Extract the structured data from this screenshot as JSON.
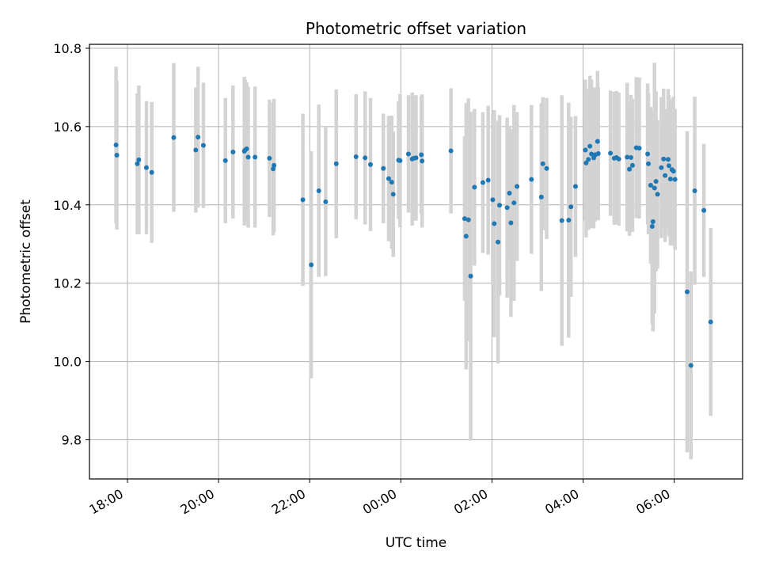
{
  "chart_data": {
    "type": "scatter",
    "title": "Photometric offset variation",
    "xlabel": "UTC time",
    "ylabel": "Photometric offset",
    "xlim": [
      "17:10",
      "07:30"
    ],
    "ylim": [
      9.7,
      10.81
    ],
    "grid": true,
    "x_ticks": [
      "18:00",
      "20:00",
      "22:00",
      "00:00",
      "02:00",
      "04:00",
      "06:00"
    ],
    "y_ticks": [
      "9.8",
      "10.0",
      "10.2",
      "10.4",
      "10.6",
      "10.8"
    ],
    "colors": {
      "point": "#1f77b4",
      "errorbar": "#d3d3d3",
      "grid": "#b0b0b0"
    },
    "series": [
      {
        "points": [
          {
            "x": "17:45",
            "y": 10.553,
            "yerr": 0.2
          },
          {
            "x": "17:46",
            "y": 10.527,
            "yerr": 0.19
          },
          {
            "x": "18:13",
            "y": 10.505,
            "yerr": 0.18
          },
          {
            "x": "18:15",
            "y": 10.515,
            "yerr": 0.19
          },
          {
            "x": "18:25",
            "y": 10.495,
            "yerr": 0.17
          },
          {
            "x": "18:32",
            "y": 10.483,
            "yerr": 0.18
          },
          {
            "x": "19:01",
            "y": 10.572,
            "yerr": 0.19
          },
          {
            "x": "19:30",
            "y": 10.54,
            "yerr": 0.16
          },
          {
            "x": "19:33",
            "y": 10.573,
            "yerr": 0.18
          },
          {
            "x": "19:40",
            "y": 10.552,
            "yerr": 0.16
          },
          {
            "x": "20:09",
            "y": 10.513,
            "yerr": 0.16
          },
          {
            "x": "20:19",
            "y": 10.535,
            "yerr": 0.17
          },
          {
            "x": "20:34",
            "y": 10.537,
            "yerr": 0.19
          },
          {
            "x": "20:35",
            "y": 10.54,
            "yerr": 0.18
          },
          {
            "x": "20:37",
            "y": 10.543,
            "yerr": 0.17
          },
          {
            "x": "20:39",
            "y": 10.522,
            "yerr": 0.18
          },
          {
            "x": "20:48",
            "y": 10.522,
            "yerr": 0.18
          },
          {
            "x": "21:07",
            "y": 10.519,
            "yerr": 0.15
          },
          {
            "x": "21:12",
            "y": 10.492,
            "yerr": 0.17
          },
          {
            "x": "21:13",
            "y": 10.501,
            "yerr": 0.17
          },
          {
            "x": "21:51",
            "y": 10.413,
            "yerr": 0.22
          },
          {
            "x": "22:02",
            "y": 10.247,
            "yerr": 0.29
          },
          {
            "x": "22:12",
            "y": 10.436,
            "yerr": 0.22
          },
          {
            "x": "22:21",
            "y": 10.408,
            "yerr": 0.19
          },
          {
            "x": "22:35",
            "y": 10.505,
            "yerr": 0.19
          },
          {
            "x": "23:01",
            "y": 10.523,
            "yerr": 0.16
          },
          {
            "x": "23:13",
            "y": 10.52,
            "yerr": 0.17
          },
          {
            "x": "23:20",
            "y": 10.503,
            "yerr": 0.17
          },
          {
            "x": "23:37",
            "y": 10.493,
            "yerr": 0.14
          },
          {
            "x": "23:44",
            "y": 10.467,
            "yerr": 0.16
          },
          {
            "x": "23:48",
            "y": 10.458,
            "yerr": 0.17
          },
          {
            "x": "23:50",
            "y": 10.427,
            "yerr": 0.16
          },
          {
            "x": "23:57",
            "y": 10.514,
            "yerr": 0.15
          },
          {
            "x": "23:59",
            "y": 10.513,
            "yerr": 0.17
          },
          {
            "x": "00:10",
            "y": 10.53,
            "yerr": 0.15
          },
          {
            "x": "00:15",
            "y": 10.517,
            "yerr": 0.17
          },
          {
            "x": "00:17",
            "y": 10.519,
            "yerr": 0.16
          },
          {
            "x": "00:20",
            "y": 10.52,
            "yerr": 0.16
          },
          {
            "x": "00:27",
            "y": 10.528,
            "yerr": 0.15
          },
          {
            "x": "00:28",
            "y": 10.512,
            "yerr": 0.17
          },
          {
            "x": "01:06",
            "y": 10.538,
            "yerr": 0.16
          },
          {
            "x": "01:24",
            "y": 10.365,
            "yerr": 0.21
          },
          {
            "x": "01:26",
            "y": 10.32,
            "yerr": 0.34
          },
          {
            "x": "01:29",
            "y": 10.362,
            "yerr": 0.31
          },
          {
            "x": "01:32",
            "y": 10.218,
            "yerr": 0.42
          },
          {
            "x": "01:37",
            "y": 10.445,
            "yerr": 0.2
          },
          {
            "x": "01:48",
            "y": 10.457,
            "yerr": 0.18
          },
          {
            "x": "01:55",
            "y": 10.463,
            "yerr": 0.19
          },
          {
            "x": "02:01",
            "y": 10.413,
            "yerr": 0.22
          },
          {
            "x": "02:03",
            "y": 10.352,
            "yerr": 0.29
          },
          {
            "x": "02:08",
            "y": 10.305,
            "yerr": 0.31
          },
          {
            "x": "02:10",
            "y": 10.399,
            "yerr": 0.23
          },
          {
            "x": "02:20",
            "y": 10.393,
            "yerr": 0.23
          },
          {
            "x": "02:23",
            "y": 10.43,
            "yerr": 0.17
          },
          {
            "x": "02:25",
            "y": 10.354,
            "yerr": 0.24
          },
          {
            "x": "02:29",
            "y": 10.405,
            "yerr": 0.25
          },
          {
            "x": "02:33",
            "y": 10.447,
            "yerr": 0.19
          },
          {
            "x": "02:52",
            "y": 10.465,
            "yerr": 0.19
          },
          {
            "x": "03:05",
            "y": 10.42,
            "yerr": 0.24
          },
          {
            "x": "03:07",
            "y": 10.505,
            "yerr": 0.17
          },
          {
            "x": "03:12",
            "y": 10.493,
            "yerr": 0.18
          },
          {
            "x": "03:32",
            "y": 10.36,
            "yerr": 0.32
          },
          {
            "x": "03:41",
            "y": 10.361,
            "yerr": 0.3
          },
          {
            "x": "03:44",
            "y": 10.395,
            "yerr": 0.23
          },
          {
            "x": "03:50",
            "y": 10.447,
            "yerr": 0.18
          },
          {
            "x": "04:03",
            "y": 10.54,
            "yerr": 0.18
          },
          {
            "x": "04:04",
            "y": 10.507,
            "yerr": 0.19
          },
          {
            "x": "04:07",
            "y": 10.516,
            "yerr": 0.18
          },
          {
            "x": "04:09",
            "y": 10.55,
            "yerr": 0.18
          },
          {
            "x": "04:11",
            "y": 10.53,
            "yerr": 0.19
          },
          {
            "x": "04:14",
            "y": 10.52,
            "yerr": 0.18
          },
          {
            "x": "04:16",
            "y": 10.528,
            "yerr": 0.17
          },
          {
            "x": "04:19",
            "y": 10.562,
            "yerr": 0.18
          },
          {
            "x": "04:20",
            "y": 10.531,
            "yerr": 0.17
          },
          {
            "x": "04:36",
            "y": 10.532,
            "yerr": 0.16
          },
          {
            "x": "04:41",
            "y": 10.519,
            "yerr": 0.17
          },
          {
            "x": "04:44",
            "y": 10.521,
            "yerr": 0.17
          },
          {
            "x": "04:47",
            "y": 10.517,
            "yerr": 0.17
          },
          {
            "x": "04:58",
            "y": 10.522,
            "yerr": 0.19
          },
          {
            "x": "05:01",
            "y": 10.491,
            "yerr": 0.17
          },
          {
            "x": "05:03",
            "y": 10.521,
            "yerr": 0.16
          },
          {
            "x": "05:05",
            "y": 10.501,
            "yerr": 0.17
          },
          {
            "x": "05:10",
            "y": 10.546,
            "yerr": 0.18
          },
          {
            "x": "05:14",
            "y": 10.545,
            "yerr": 0.18
          },
          {
            "x": "05:25",
            "y": 10.53,
            "yerr": 0.18
          },
          {
            "x": "05:26",
            "y": 10.505,
            "yerr": 0.18
          },
          {
            "x": "05:29",
            "y": 10.45,
            "yerr": 0.2
          },
          {
            "x": "05:31",
            "y": 10.345,
            "yerr": 0.25
          },
          {
            "x": "05:32",
            "y": 10.357,
            "yerr": 0.28
          },
          {
            "x": "05:34",
            "y": 10.443,
            "yerr": 0.32
          },
          {
            "x": "05:36",
            "y": 10.46,
            "yerr": 0.23
          },
          {
            "x": "05:38",
            "y": 10.427,
            "yerr": 0.19
          },
          {
            "x": "05:43",
            "y": 10.495,
            "yerr": 0.18
          },
          {
            "x": "05:46",
            "y": 10.517,
            "yerr": 0.18
          },
          {
            "x": "05:48",
            "y": 10.475,
            "yerr": 0.17
          },
          {
            "x": "05:52",
            "y": 10.516,
            "yerr": 0.18
          },
          {
            "x": "05:53",
            "y": 10.5,
            "yerr": 0.18
          },
          {
            "x": "05:55",
            "y": 10.466,
            "yerr": 0.17
          },
          {
            "x": "05:57",
            "y": 10.49,
            "yerr": 0.18
          },
          {
            "x": "05:59",
            "y": 10.486,
            "yerr": 0.19
          },
          {
            "x": "06:01",
            "y": 10.465,
            "yerr": 0.18
          },
          {
            "x": "06:17",
            "y": 10.178,
            "yerr": 0.41
          },
          {
            "x": "06:22",
            "y": 9.99,
            "yerr": 0.24
          },
          {
            "x": "06:27",
            "y": 10.436,
            "yerr": 0.24
          },
          {
            "x": "06:39",
            "y": 10.386,
            "yerr": 0.17
          },
          {
            "x": "06:48",
            "y": 10.101,
            "yerr": 0.24
          }
        ]
      }
    ]
  }
}
